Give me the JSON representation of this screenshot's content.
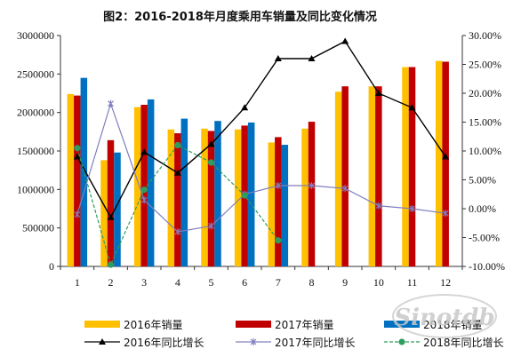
{
  "chart_data": {
    "type": "bar+line",
    "title": "图2：2016-2018年月度乘用车销量及同比变化情况",
    "categories": [
      "1",
      "2",
      "3",
      "4",
      "5",
      "6",
      "7",
      "8",
      "9",
      "10",
      "11",
      "12"
    ],
    "y_left": {
      "min": 0,
      "max": 3000000,
      "step": 500000,
      "ticks": [
        "0",
        "500000",
        "1000000",
        "1500000",
        "2000000",
        "2500000",
        "3000000"
      ]
    },
    "y_right": {
      "min": -10,
      "max": 30,
      "step": 5,
      "ticks": [
        "-10.00%",
        "-5.00%",
        "0.00%",
        "5.00%",
        "10.00%",
        "15.00%",
        "20.00%",
        "25.00%",
        "30.00%"
      ]
    },
    "bar_series": [
      {
        "name": "2016年销量",
        "color": "#ffc000",
        "values": [
          2240000,
          1380000,
          2070000,
          1780000,
          1790000,
          1780000,
          1610000,
          1790000,
          2270000,
          2340000,
          2590000,
          2670000
        ]
      },
      {
        "name": "2017年销量",
        "color": "#c00000",
        "values": [
          2220000,
          1640000,
          2100000,
          1730000,
          1760000,
          1830000,
          1680000,
          1880000,
          2340000,
          2340000,
          2590000,
          2660000
        ]
      },
      {
        "name": "2018年销量",
        "color": "#0070c0",
        "values": [
          2450000,
          1480000,
          2170000,
          1920000,
          1890000,
          1870000,
          1580000,
          null,
          null,
          null,
          null,
          null
        ]
      }
    ],
    "line_series": [
      {
        "name": "2016年同比增长",
        "color": "#000000",
        "marker": "triangle",
        "values": [
          9.0,
          -1.5,
          9.8,
          6.2,
          11.2,
          17.5,
          26.0,
          26.0,
          29.0,
          20.0,
          17.5,
          9.0
        ]
      },
      {
        "name": "2017年同比增长",
        "color": "#7f7fbf",
        "marker": "x",
        "values": [
          -1.0,
          18.2,
          1.5,
          -4.0,
          -3.0,
          2.5,
          4.0,
          4.0,
          3.5,
          0.5,
          0.0,
          -0.8
        ]
      },
      {
        "name": "2018年同比增长",
        "color": "#2e9e5e",
        "marker": "circle",
        "values": [
          10.5,
          -9.7,
          3.3,
          11.0,
          8.0,
          2.3,
          -5.5,
          null,
          null,
          null,
          null,
          null
        ]
      }
    ],
    "legend": {
      "position": "bottom",
      "items": [
        "2016年销量",
        "2017年销量",
        "2018年销量",
        "2016年同比增长",
        "2017年同比增长",
        "2018年同比增长"
      ]
    },
    "grid": false
  }
}
